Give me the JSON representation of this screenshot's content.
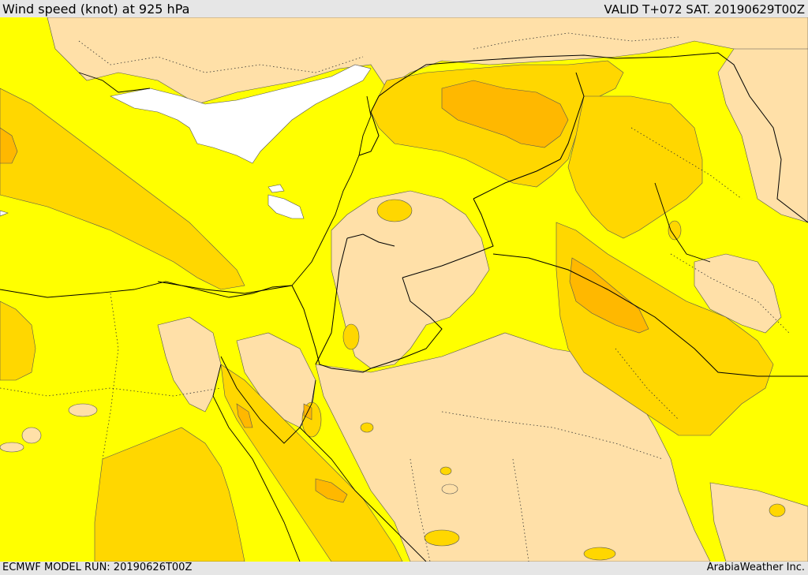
{
  "header": {
    "title": "Wind speed (knot) at 925 hPa",
    "valid_time": "VALID T+072 SAT. 20190629T00Z"
  },
  "footer": {
    "model_run": "ECMWF MODEL RUN: 20190626T00Z",
    "credit": "ArabiaWeather Inc."
  },
  "colors": {
    "calm": "#ffffff",
    "light": "#ffe0a8",
    "moderate": "#ffff00",
    "fresh": "#ffd700",
    "strong": "#ffb800",
    "borders": "#000000"
  }
}
